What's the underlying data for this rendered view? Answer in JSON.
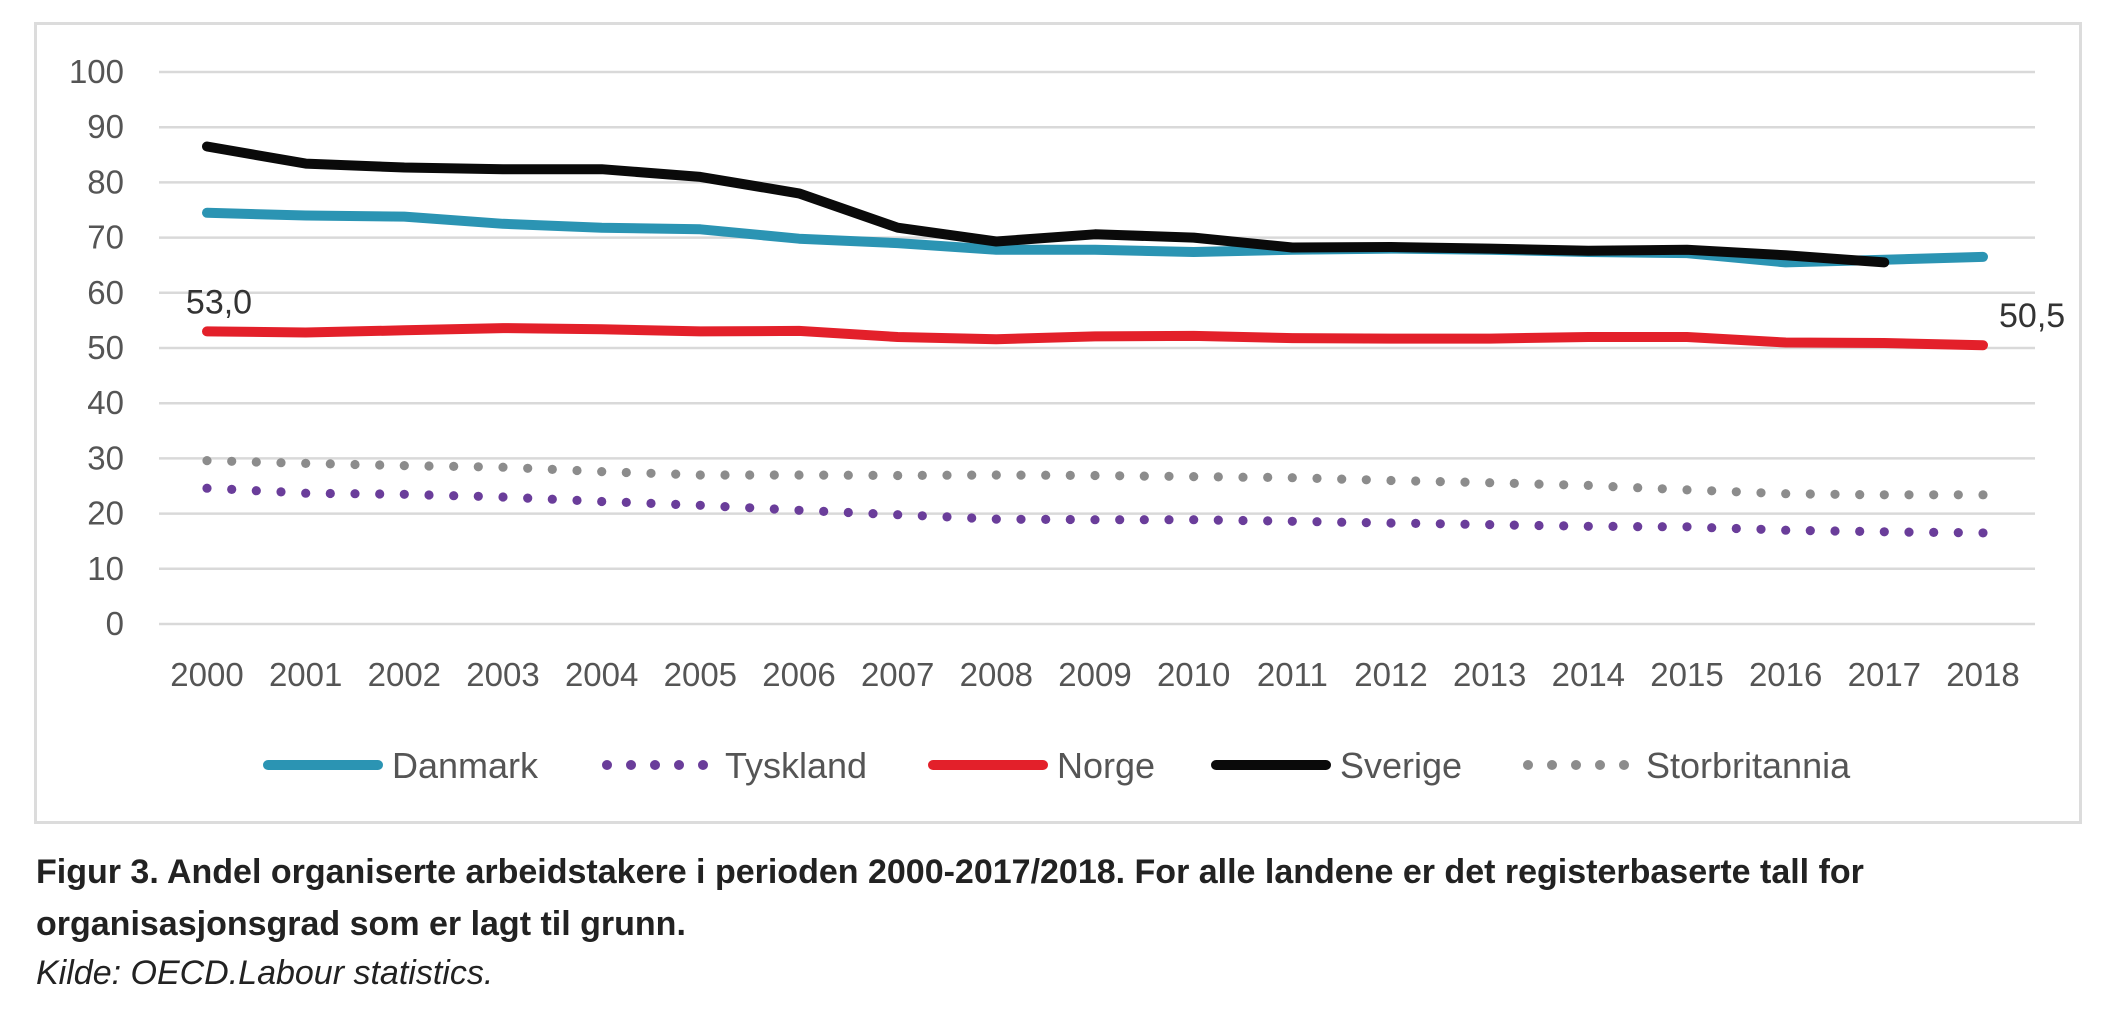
{
  "chart_data": {
    "type": "line",
    "title": "",
    "xlabel": "",
    "ylabel": "",
    "ylim": [
      0,
      100
    ],
    "yticks": [
      "0",
      "10",
      "20",
      "30",
      "40",
      "50",
      "60",
      "70",
      "80",
      "90",
      "100"
    ],
    "x": [
      "2000",
      "2001",
      "2002",
      "2003",
      "2004",
      "2005",
      "2006",
      "2007",
      "2008",
      "2009",
      "2010",
      "2011",
      "2012",
      "2013",
      "2014",
      "2015",
      "2016",
      "2017",
      "2018"
    ],
    "grid": true,
    "legend_position": "bottom",
    "series": [
      {
        "name": "Danmark",
        "color": "#2b94b3",
        "style": "solid",
        "values": [
          74.5,
          74.0,
          73.8,
          72.5,
          71.8,
          71.5,
          69.8,
          69.0,
          67.8,
          67.8,
          67.4,
          67.8,
          68.0,
          67.8,
          67.4,
          67.2,
          65.5,
          66.0,
          66.5
        ]
      },
      {
        "name": "Tyskland",
        "color": "#6a3d9a",
        "style": "dotted",
        "values": [
          24.6,
          23.7,
          23.5,
          23.0,
          22.2,
          21.5,
          20.6,
          19.8,
          19.0,
          18.9,
          18.9,
          18.6,
          18.3,
          18.0,
          17.7,
          17.6,
          17.0,
          16.7,
          16.5
        ]
      },
      {
        "name": "Norge",
        "color": "#e3202a",
        "style": "solid",
        "labels": {
          "first": "53,0",
          "last": "50,5"
        },
        "values": [
          53.0,
          52.8,
          53.2,
          53.6,
          53.4,
          53.0,
          53.1,
          52.0,
          51.6,
          52.1,
          52.2,
          51.8,
          51.7,
          51.7,
          52.0,
          52.0,
          51.0,
          50.9,
          50.5
        ]
      },
      {
        "name": "Sverige",
        "color": "#0a0a0a",
        "style": "solid",
        "values": [
          86.5,
          83.4,
          82.7,
          82.4,
          82.4,
          81.0,
          78.0,
          71.8,
          69.3,
          70.6,
          70.0,
          68.2,
          68.3,
          68.0,
          67.6,
          67.8,
          66.8,
          65.5,
          null
        ]
      },
      {
        "name": "Storbritannia",
        "color": "#8c8c8c",
        "style": "dotted",
        "values": [
          29.6,
          29.1,
          28.7,
          28.4,
          27.6,
          27.0,
          27.0,
          26.9,
          27.0,
          26.9,
          26.7,
          26.5,
          26.0,
          25.6,
          25.1,
          24.3,
          23.6,
          23.4,
          23.4
        ]
      }
    ]
  },
  "caption": "Figur 3. Andel organiserte arbeidstakere i perioden 2000-2017/2018. For alle landene er det registerbaserte tall for organisasjonsgrad som er lagt til grunn.",
  "source": "Kilde: OECD.Labour statistics."
}
